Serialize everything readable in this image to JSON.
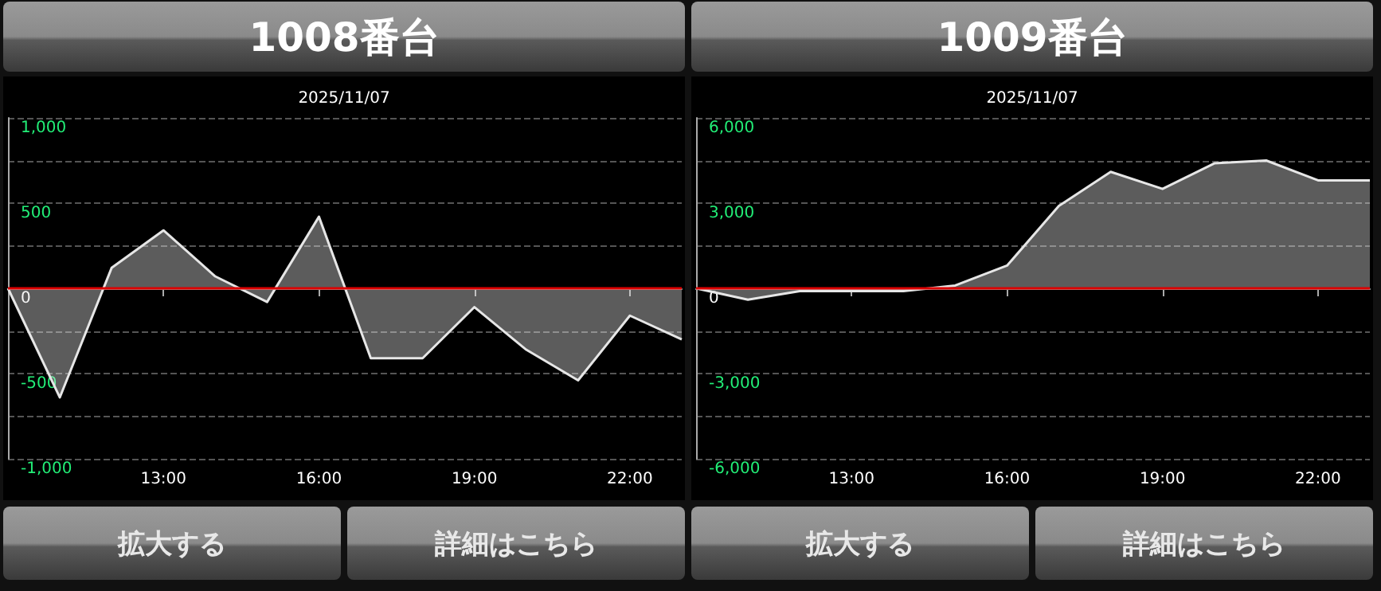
{
  "chart_data": [
    {
      "type": "area",
      "title": "1008番台",
      "subtitle": "2025/11/07",
      "x": [
        10,
        11,
        12,
        13,
        14,
        15,
        16,
        17,
        18,
        19,
        20,
        21,
        22,
        23
      ],
      "series": [
        {
          "color": "#e6e6e6",
          "values": [
            0,
            -640,
            120,
            340,
            70,
            -80,
            420,
            -410,
            -410,
            -110,
            -360,
            -540,
            -160,
            -300
          ]
        }
      ],
      "xlim": [
        10,
        23
      ],
      "xticks": [
        {
          "value": 13,
          "label": "13:00"
        },
        {
          "value": 16,
          "label": "16:00"
        },
        {
          "value": 19,
          "label": "19:00"
        },
        {
          "value": 22,
          "label": "22:00"
        }
      ],
      "ylim": [
        -1000,
        1000
      ],
      "yticks": [
        {
          "value": -1000,
          "label": "-1,000"
        },
        {
          "value": -750,
          "label": null
        },
        {
          "value": -500,
          "label": "-500"
        },
        {
          "value": -250,
          "label": null
        },
        {
          "value": 0,
          "label": "0"
        },
        {
          "value": 250,
          "label": null
        },
        {
          "value": 500,
          "label": "500"
        },
        {
          "value": 750,
          "label": null
        },
        {
          "value": 1000,
          "label": "1,000"
        }
      ],
      "grid": "y",
      "marker": "none",
      "line_style": "solid",
      "ref_lines": [
        {
          "axis": "y",
          "value": 0,
          "color": "#dd0000"
        }
      ],
      "annotations": [
        "拡大する",
        "詳細はこちら"
      ]
    },
    {
      "type": "area",
      "title": "1009番台",
      "subtitle": "2025/11/07",
      "x": [
        10,
        11,
        12,
        13,
        14,
        15,
        16,
        17,
        18,
        19,
        20,
        21,
        22,
        23
      ],
      "series": [
        {
          "color": "#e6e6e6",
          "values": [
            0,
            -400,
            -100,
            -100,
            -100,
            100,
            800,
            2900,
            4100,
            3500,
            4400,
            4500,
            3800,
            3800
          ]
        }
      ],
      "xlim": [
        10,
        23
      ],
      "xticks": [
        {
          "value": 13,
          "label": "13:00"
        },
        {
          "value": 16,
          "label": "16:00"
        },
        {
          "value": 19,
          "label": "19:00"
        },
        {
          "value": 22,
          "label": "22:00"
        }
      ],
      "ylim": [
        -6000,
        6000
      ],
      "yticks": [
        {
          "value": -6000,
          "label": "-6,000"
        },
        {
          "value": -4500,
          "label": null
        },
        {
          "value": -3000,
          "label": "-3,000"
        },
        {
          "value": -1500,
          "label": null
        },
        {
          "value": 0,
          "label": "0"
        },
        {
          "value": 1500,
          "label": null
        },
        {
          "value": 3000,
          "label": "3,000"
        },
        {
          "value": 4500,
          "label": null
        },
        {
          "value": 6000,
          "label": "6,000"
        }
      ],
      "grid": "y",
      "marker": "none",
      "line_style": "solid",
      "ref_lines": [
        {
          "axis": "y",
          "value": 0,
          "color": "#dd0000"
        }
      ],
      "annotations": [
        "拡大する",
        "詳細はこちら"
      ]
    }
  ]
}
